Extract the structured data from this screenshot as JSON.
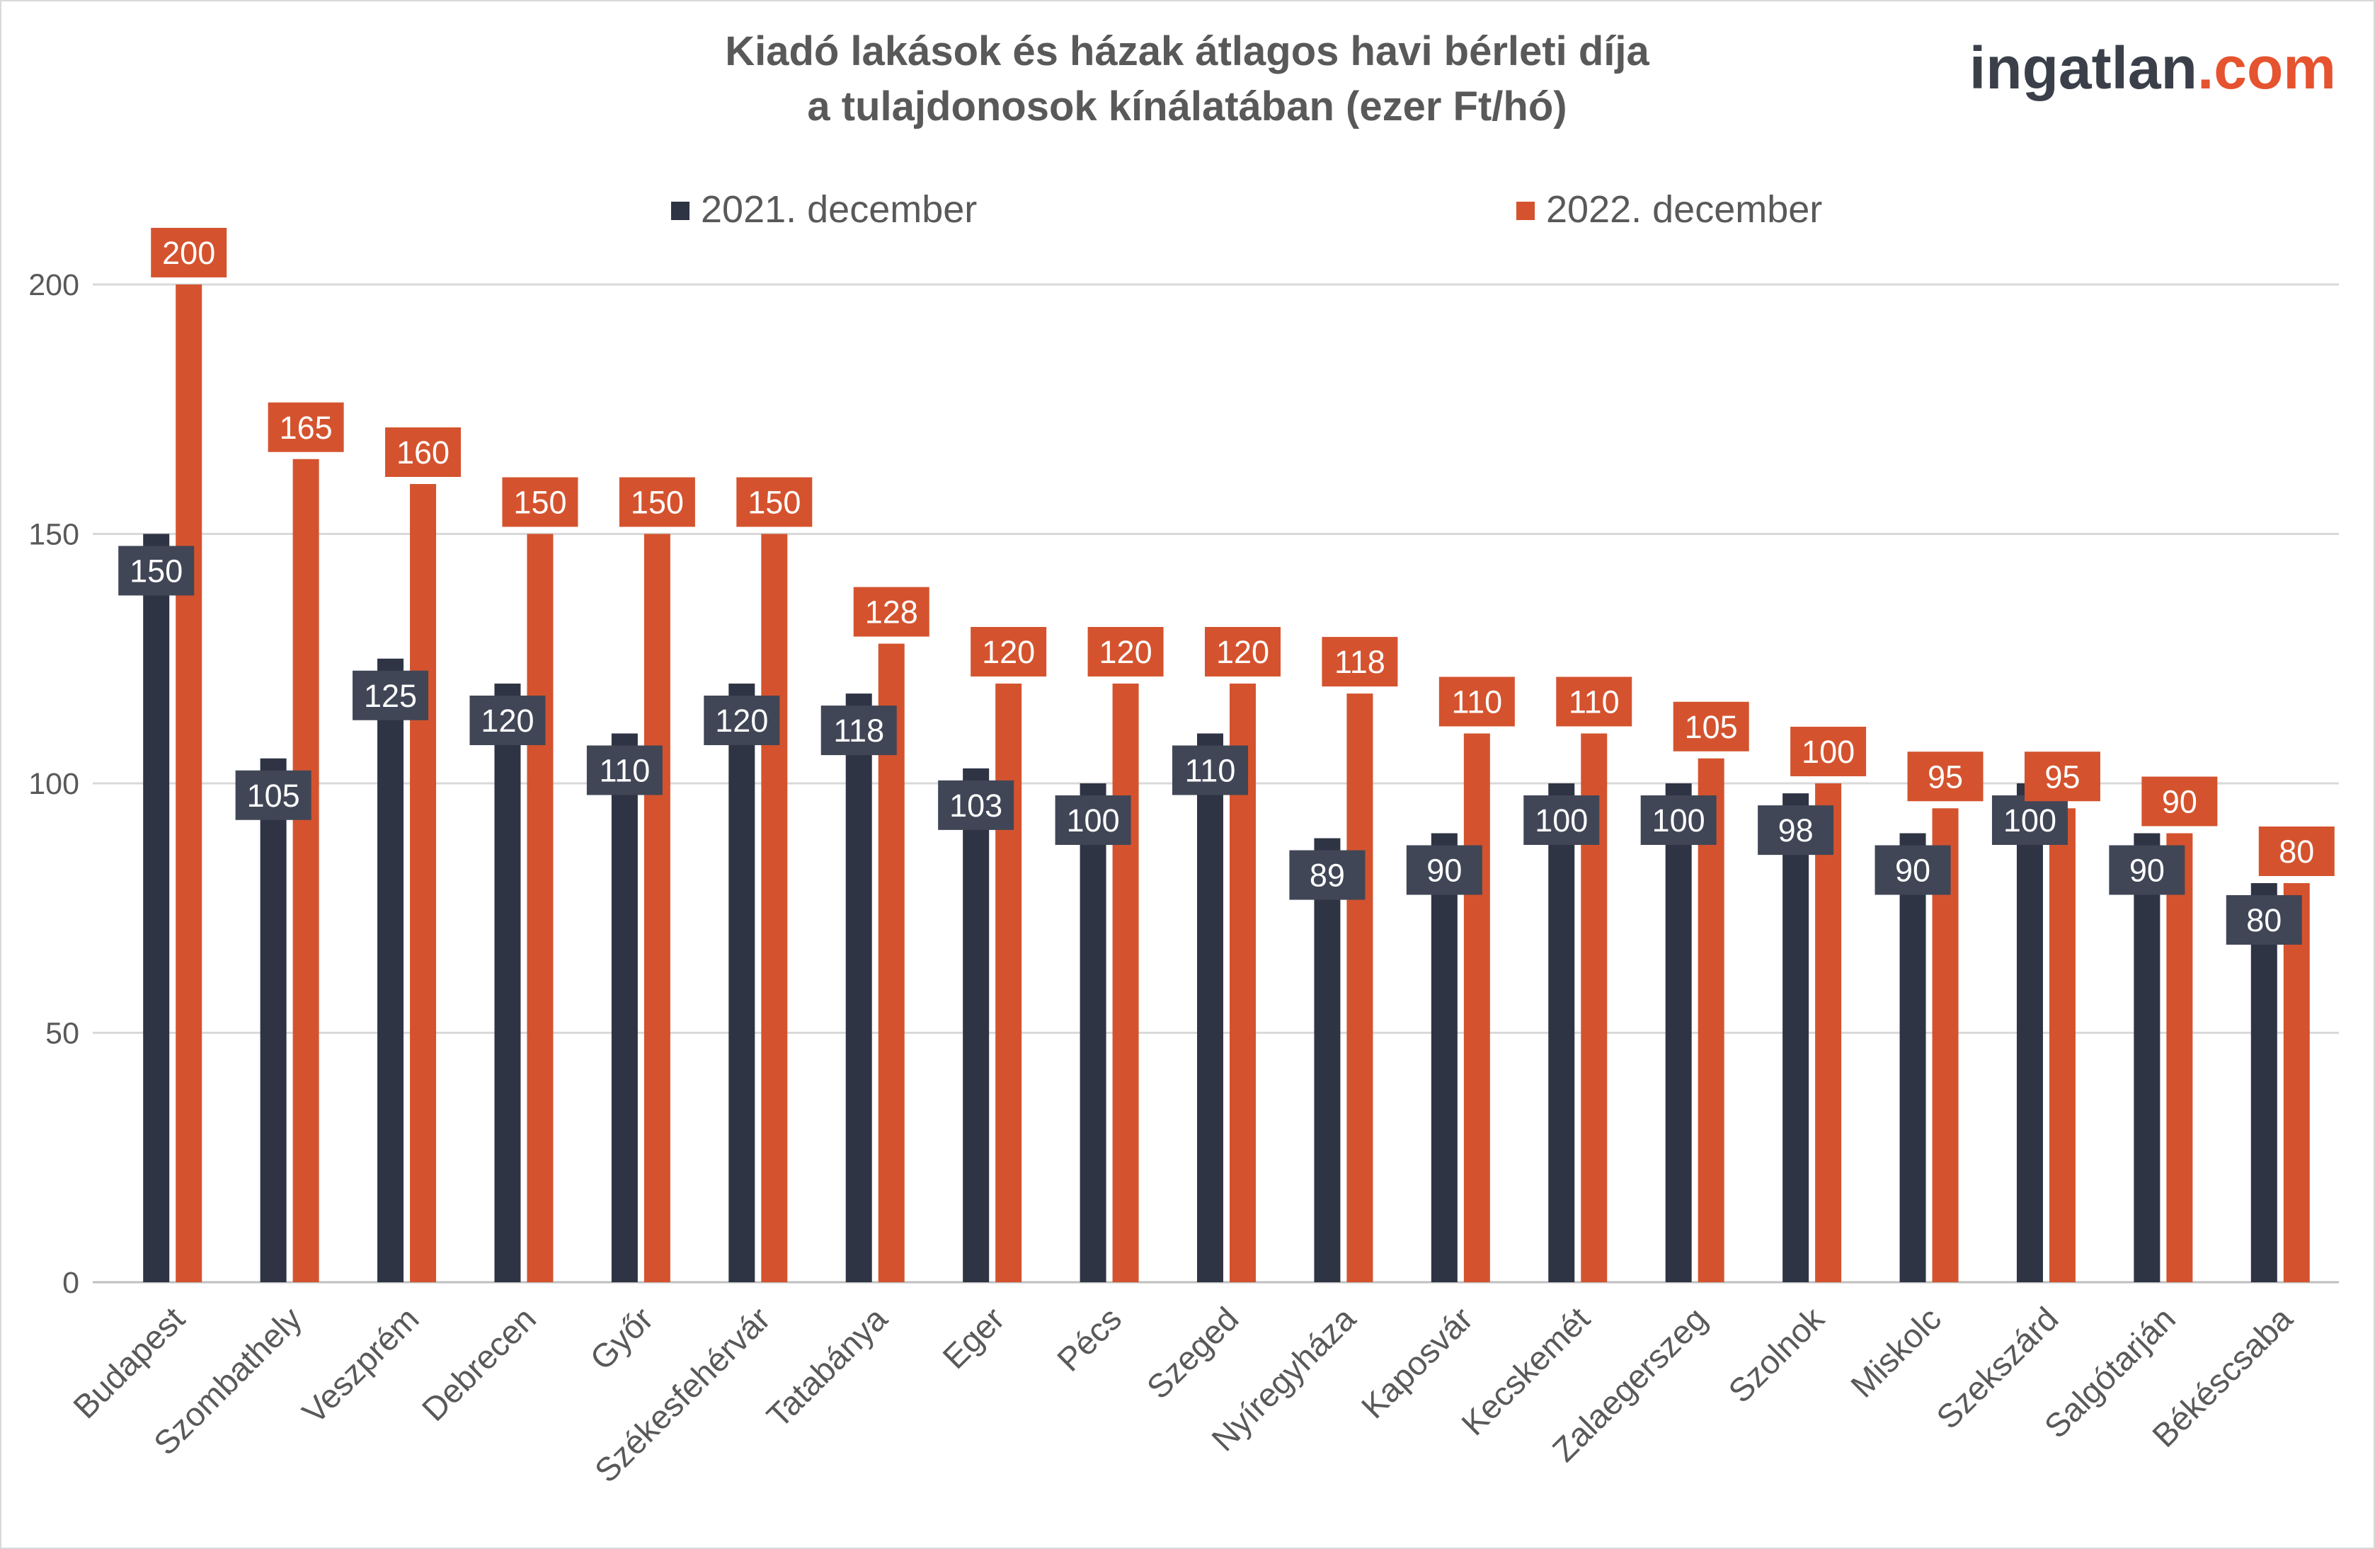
{
  "logo": {
    "part1": "ingatlan",
    "part2": ".com"
  },
  "chart_data": {
    "type": "bar",
    "title": [
      "Kiadó lakások és házak átlagos havi bérleti díja",
      "a tulajdonosok kínálatában (ezer Ft/hó)"
    ],
    "xlabel": "",
    "ylabel": "",
    "ylim": [
      0,
      200
    ],
    "yticks": [
      0,
      50,
      100,
      150,
      200
    ],
    "grid": true,
    "legend_position": "top",
    "categories": [
      "Budapest",
      "Szombathely",
      "Veszprém",
      "Debrecen",
      "Győr",
      "Székesfehérvár",
      "Tatabánya",
      "Eger",
      "Pécs",
      "Szeged",
      "Nyíregyháza",
      "Kaposvár",
      "Kecskemét",
      "Zalaegerszeg",
      "Szolnok",
      "Miskolc",
      "Szekszárd",
      "Salgótarján",
      "Békéscsaba"
    ],
    "series": [
      {
        "name": "2021. december",
        "color": "#2e3444",
        "values": [
          150,
          105,
          125,
          120,
          110,
          120,
          118,
          103,
          100,
          110,
          89,
          90,
          100,
          100,
          98,
          90,
          100,
          90,
          80
        ]
      },
      {
        "name": "2022. december",
        "color": "#d4532e",
        "values": [
          200,
          165,
          160,
          150,
          150,
          150,
          128,
          120,
          120,
          120,
          118,
          110,
          110,
          105,
          100,
          95,
          95,
          90,
          80
        ]
      }
    ]
  }
}
